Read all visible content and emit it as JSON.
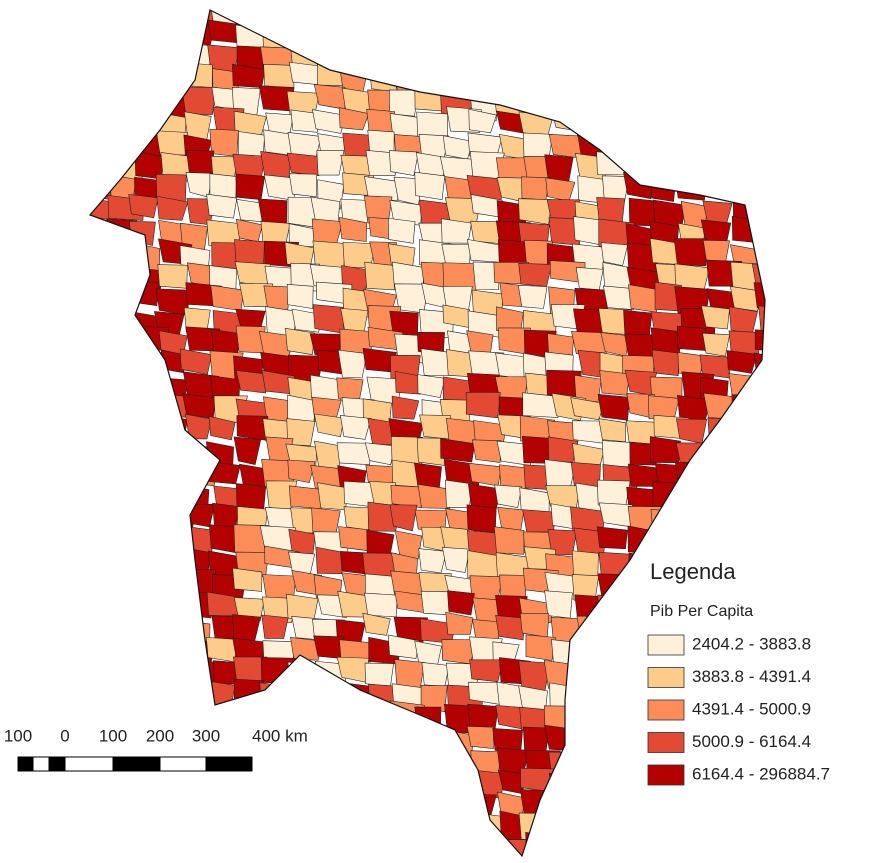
{
  "legend": {
    "title": "Legenda",
    "subtitle": "Pib Per Capita",
    "items": [
      {
        "label": "2404.2 - 3883.8",
        "color": "#fef0d9"
      },
      {
        "label": "3883.8 - 4391.4",
        "color": "#fdcc8a"
      },
      {
        "label": "4391.4 - 5000.9",
        "color": "#fc8d59"
      },
      {
        "label": "5000.9 - 6164.4",
        "color": "#e34a33"
      },
      {
        "label": "6164.4 - 296884.7",
        "color": "#b30000"
      }
    ]
  },
  "scale_bar": {
    "labels": [
      "100",
      "0",
      "100",
      "200",
      "300",
      "400 km"
    ]
  }
}
